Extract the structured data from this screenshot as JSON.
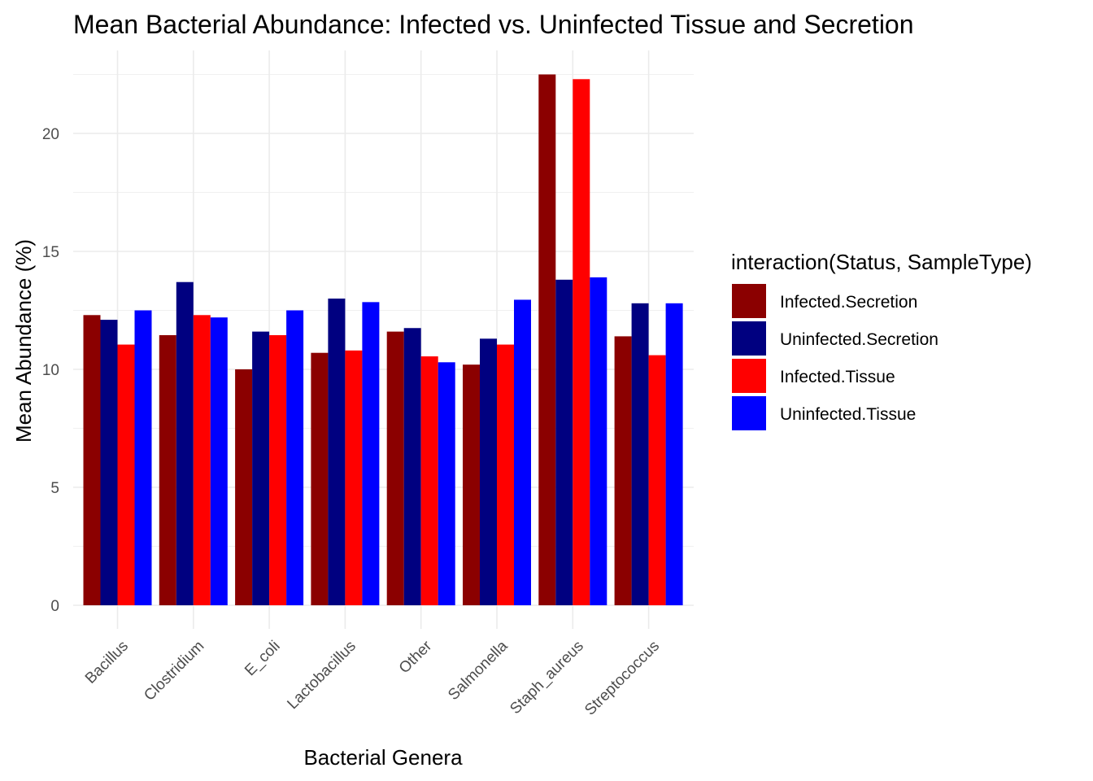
{
  "chart_data": {
    "type": "bar",
    "title": "Mean Bacterial Abundance: Infected vs. Uninfected Tissue and Secretion",
    "xlabel": "Bacterial Genera",
    "ylabel": "Mean Abundance (%)",
    "ylim": [
      0,
      22.5
    ],
    "yticks": [
      0,
      5,
      10,
      15,
      20
    ],
    "grid": true,
    "legend_position": "right",
    "legend_title": "interaction(Status, SampleType)",
    "categories": [
      "Bacillus",
      "Clostridium",
      "E_coli",
      "Lactobacillus",
      "Other",
      "Salmonella",
      "Staph_aureus",
      "Streptococcus"
    ],
    "series": [
      {
        "name": "Infected.Secretion",
        "color": "#8B0000",
        "values": [
          12.3,
          11.45,
          10.0,
          10.7,
          11.6,
          10.2,
          22.5,
          11.4
        ]
      },
      {
        "name": "Uninfected.Secretion",
        "color": "#000080",
        "values": [
          12.1,
          13.7,
          11.6,
          13.0,
          11.75,
          11.3,
          13.8,
          12.8
        ]
      },
      {
        "name": "Infected.Tissue",
        "color": "#FF0000",
        "values": [
          11.05,
          12.3,
          11.45,
          10.8,
          10.55,
          11.05,
          22.3,
          10.6
        ]
      },
      {
        "name": "Uninfected.Tissue",
        "color": "#0000FF",
        "values": [
          12.5,
          12.2,
          12.5,
          12.85,
          10.3,
          12.95,
          13.9,
          12.8
        ]
      }
    ]
  }
}
